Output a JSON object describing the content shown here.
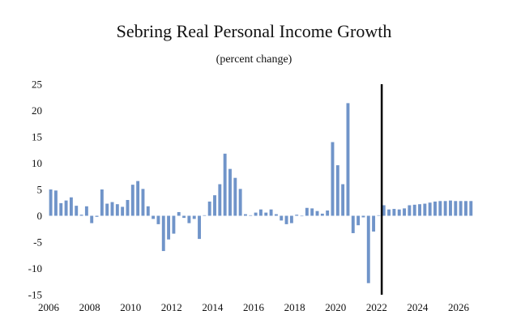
{
  "chart_data": {
    "type": "bar",
    "title": "Sebring Real Personal Income Growth",
    "subtitle": "(percent change)",
    "xlabel": "",
    "ylabel": "",
    "ylim": [
      -15,
      25
    ],
    "yticks": [
      25,
      20,
      15,
      10,
      5,
      0,
      -5,
      -10,
      -15
    ],
    "xlim": [
      2006,
      2026.75
    ],
    "xticks": [
      "2006",
      "2008",
      "2010",
      "2012",
      "2014",
      "2016",
      "2018",
      "2020",
      "2022",
      "2024",
      "2026"
    ],
    "vertical_line_x": 2022.25,
    "bar_color": "#7094c9",
    "series": [
      {
        "name": "Real Personal Income Growth",
        "x": [
          2006.0,
          2006.25,
          2006.5,
          2006.75,
          2007.0,
          2007.25,
          2007.5,
          2007.75,
          2008.0,
          2008.25,
          2008.5,
          2008.75,
          2009.0,
          2009.25,
          2009.5,
          2009.75,
          2010.0,
          2010.25,
          2010.5,
          2010.75,
          2011.0,
          2011.25,
          2011.5,
          2011.75,
          2012.0,
          2012.25,
          2012.5,
          2012.75,
          2013.0,
          2013.25,
          2013.5,
          2013.75,
          2014.0,
          2014.25,
          2014.5,
          2014.75,
          2015.0,
          2015.25,
          2015.5,
          2015.75,
          2016.0,
          2016.25,
          2016.5,
          2016.75,
          2017.0,
          2017.25,
          2017.5,
          2017.75,
          2018.0,
          2018.25,
          2018.5,
          2018.75,
          2019.0,
          2019.25,
          2019.5,
          2019.75,
          2020.0,
          2020.25,
          2020.5,
          2020.75,
          2021.0,
          2021.25,
          2021.5,
          2021.75,
          2022.0,
          2022.25,
          2022.5,
          2022.75,
          2023.0,
          2023.25,
          2023.5,
          2023.75,
          2024.0,
          2024.25,
          2024.5,
          2024.75,
          2025.0,
          2025.25,
          2025.5,
          2025.75,
          2026.0,
          2026.25,
          2026.5
        ],
        "values": [
          5.0,
          4.8,
          2.4,
          2.9,
          3.5,
          1.9,
          0.2,
          1.8,
          -1.4,
          -0.2,
          5.0,
          2.3,
          2.6,
          2.2,
          1.7,
          3.0,
          5.9,
          6.6,
          5.1,
          1.8,
          -0.6,
          -1.6,
          -6.7,
          -4.5,
          -3.4,
          0.7,
          -0.4,
          -1.4,
          -0.6,
          -4.4,
          0.1,
          2.7,
          3.9,
          6.0,
          11.8,
          8.9,
          7.2,
          5.1,
          0.3,
          0.1,
          0.6,
          1.2,
          0.6,
          1.2,
          0.3,
          -0.9,
          -1.6,
          -1.4,
          0.2,
          0.0,
          1.5,
          1.4,
          0.9,
          0.4,
          1.0,
          14.0,
          9.6,
          6.0,
          21.4,
          -3.3,
          -1.8,
          -0.3,
          -12.8,
          -3.0,
          0.1,
          2.0,
          1.2,
          1.3,
          1.2,
          1.4,
          2.0,
          2.1,
          2.2,
          2.3,
          2.5,
          2.7,
          2.8,
          2.8,
          2.9,
          2.8,
          2.8,
          2.8,
          2.8
        ]
      }
    ]
  }
}
